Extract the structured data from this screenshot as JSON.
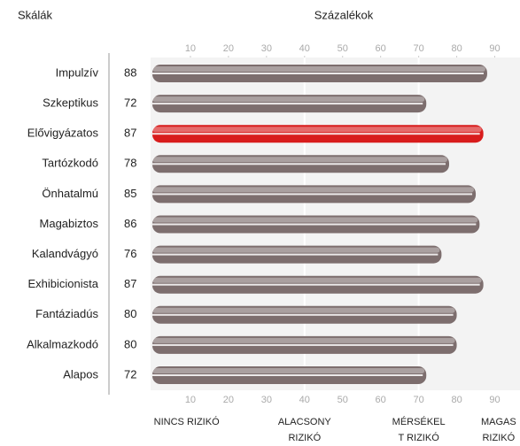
{
  "chart_data": {
    "type": "bar",
    "orientation": "horizontal",
    "title": "Skálák",
    "xlabel": "Százalékok",
    "categories": [
      "Impulzív",
      "Szkeptikus",
      "Elővigyázatos",
      "Tartózkodó",
      "Önhatalmú",
      "Magabiztos",
      "Kalandvágyó",
      "Exhibicionista",
      "Fantáziadús",
      "Alkalmazkodó",
      "Alapos"
    ],
    "values": [
      88,
      72,
      87,
      78,
      85,
      86,
      76,
      87,
      80,
      80,
      72
    ],
    "colors": [
      "#7d6e6e",
      "#7d6e6e",
      "#d81c1c",
      "#7d6e6e",
      "#7d6e6e",
      "#7d6e6e",
      "#7d6e6e",
      "#7d6e6e",
      "#7d6e6e",
      "#7d6e6e",
      "#7d6e6e"
    ],
    "xlim": [
      0,
      95
    ],
    "xticks": [
      10,
      20,
      30,
      40,
      50,
      60,
      70,
      80,
      90
    ],
    "dividers": [
      40,
      70
    ],
    "band_labels": [
      {
        "value": 9,
        "lines": [
          "NINCS RIZIKÓ"
        ]
      },
      {
        "value": 40,
        "lines": [
          "ALACSONY",
          "RIZIKÓ"
        ]
      },
      {
        "value": 70,
        "lines": [
          "MÉRSÉKEL",
          "T RIZIKÓ"
        ]
      },
      {
        "value": 91,
        "lines": [
          "MAGAS",
          "RIZIKÓ"
        ]
      }
    ]
  }
}
